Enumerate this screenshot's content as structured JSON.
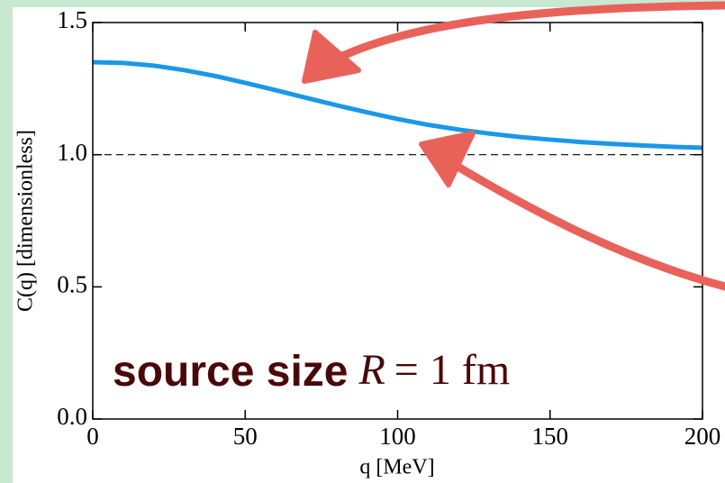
{
  "chart_data": {
    "type": "line",
    "x_label": "q [MeV]",
    "y_label": "C(q) [dimensionless]",
    "x": [
      0,
      10,
      20,
      30,
      40,
      50,
      60,
      70,
      80,
      90,
      100,
      110,
      120,
      130,
      140,
      150,
      160,
      170,
      180,
      190,
      200
    ],
    "series": [
      {
        "color": "#1a98e8",
        "values": [
          1.35,
          1.347,
          1.337,
          1.32,
          1.298,
          1.272,
          1.244,
          1.215,
          1.187,
          1.16,
          1.135,
          1.113,
          1.095,
          1.08,
          1.067,
          1.057,
          1.048,
          1.041,
          1.035,
          1.03,
          1.026
        ]
      }
    ],
    "xlim": [
      0,
      200
    ],
    "xticks": [
      0,
      50,
      100,
      150,
      200
    ],
    "ylim": [
      0,
      1.5
    ],
    "yticks": [
      {
        "value": 0,
        "label": "0.0"
      },
      0.5,
      {
        "value": 1,
        "label": "1.0"
      },
      1.5
    ],
    "reference_line": 1,
    "annotation": {
      "label": "source size",
      "symbol": "R",
      "equation": "= 1 fm"
    }
  }
}
